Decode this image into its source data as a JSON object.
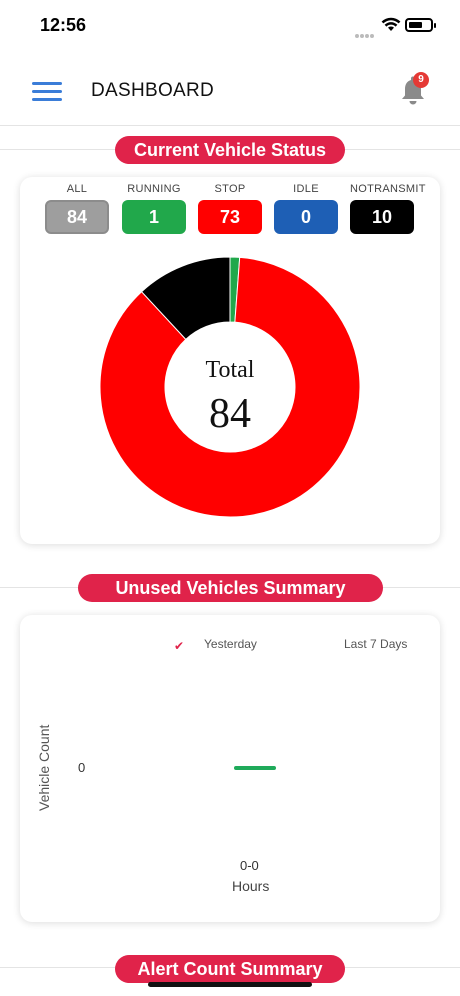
{
  "status_bar": {
    "time": "12:56"
  },
  "header": {
    "title": "DASHBOARD",
    "notification_count": "9"
  },
  "sections": {
    "vehicle_status_title": "Current Vehicle Status",
    "unused_title": "Unused Vehicles Summary",
    "alert_title": "Alert Count Summary"
  },
  "vehicle_status": {
    "tiles": [
      {
        "label": "ALL",
        "value": "84",
        "color": "#9e9e9e"
      },
      {
        "label": "RUNNING",
        "value": "1",
        "color": "#21a84b"
      },
      {
        "label": "STOP",
        "value": "73",
        "color": "#ff0000"
      },
      {
        "label": "IDLE",
        "value": "0",
        "color": "#1e5fb5"
      },
      {
        "label": "NOTRANSMIT",
        "value": "10",
        "color": "#000000"
      }
    ],
    "total_label": "Total",
    "total_value": "84"
  },
  "chart_data": [
    {
      "type": "pie",
      "categories": [
        "RUNNING",
        "STOP",
        "IDLE",
        "NOTRANSMIT"
      ],
      "values": [
        1,
        73,
        0,
        10
      ],
      "colors": [
        "#21a84b",
        "#ff0000",
        "#1e5fb5",
        "#000000"
      ]
    },
    {
      "type": "bar",
      "categories": [
        "0-0"
      ],
      "series": [
        {
          "name": "Yesterday",
          "values": [
            0
          ]
        }
      ],
      "legend": [
        "Yesterday",
        "Last 7 Days"
      ],
      "xlabel": "Hours",
      "ylabel": "Vehicle Count",
      "yticks": [
        "0"
      ]
    }
  ],
  "unused_chart": {
    "legend_yesterday": "Yesterday",
    "legend_last7": "Last 7 Days",
    "ylabel": "Vehicle Count",
    "y_tick": "0",
    "x_tick": "0-0",
    "xlabel": "Hours"
  }
}
